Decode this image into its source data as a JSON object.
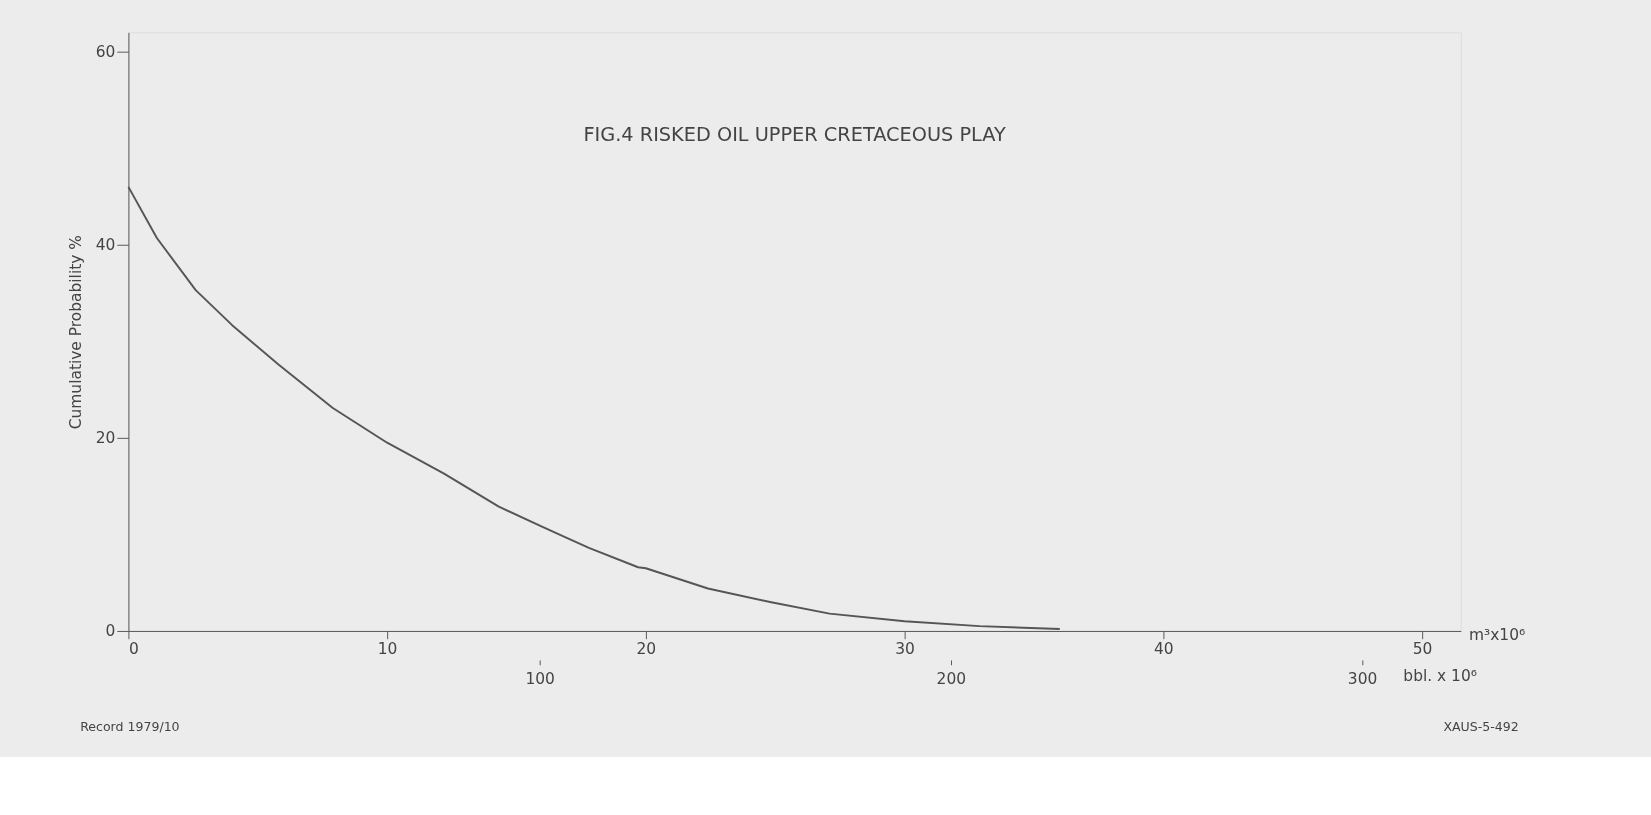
{
  "chart_data": {
    "type": "line",
    "title": "FIG.4 RISKED OIL UPPER CRETACEOUS PLAY",
    "ylabel": "Cumulative Probability %",
    "xlabel": "m³x10⁶",
    "x2label": "bbl. x 10⁶",
    "annotations": [
      "Record 1979/10",
      "XAUS-5-492"
    ],
    "color": "#555555",
    "x": [
      0,
      1.1,
      2.6,
      4.0,
      5.8,
      7.9,
      10,
      12.2,
      14.3,
      15.9,
      16.9,
      17.8,
      19.7,
      20,
      22.4,
      24.8,
      27.1,
      30,
      32.9,
      36.0
    ],
    "values": [
      46,
      40.7,
      35.3,
      31.7,
      27.6,
      23.1,
      19.5,
      16.3,
      12.9,
      10.9,
      9.7,
      8.6,
      6.6,
      6.5,
      4.4,
      3.0,
      1.8,
      1.0,
      0.5,
      0.2
    ],
    "xlim": [
      0,
      51.5
    ],
    "xticks": [
      0,
      10,
      20,
      30,
      40,
      50
    ],
    "x2lim": [
      0,
      324
    ],
    "x2ticks": [
      100,
      200,
      300
    ],
    "ylim": [
      0,
      62
    ],
    "yticks": [
      0,
      20,
      40,
      60
    ]
  }
}
